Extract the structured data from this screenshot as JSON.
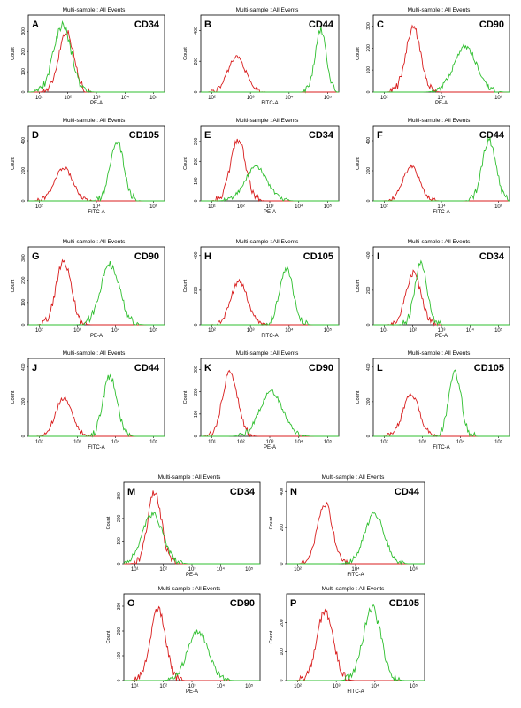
{
  "colors": {
    "negative": "#d81c1c",
    "positive": "#2fbf2f",
    "axis": "#000000",
    "background": "#ffffff"
  },
  "chart_data": [
    {
      "type": "line",
      "panel": "A",
      "marker": "CD34",
      "subtitle": "Multi-sample : All Events",
      "xlabel": "PE-A",
      "ylabel": "Count",
      "x_scale": "log",
      "xlim": [
        10,
        100000
      ],
      "x_ticks": [
        "10¹",
        "10²",
        "10³",
        "10⁴",
        "10⁵"
      ],
      "ylim": [
        0,
        380
      ],
      "y_ticks": [
        "0",
        "100",
        "200",
        "300"
      ],
      "series": [
        {
          "color": "red",
          "peak_x": 130,
          "peak_y": 300,
          "width": 0.22
        },
        {
          "color": "green",
          "peak_x": 100,
          "peak_y": 330,
          "width": 0.26
        }
      ]
    },
    {
      "type": "line",
      "panel": "B",
      "marker": "CD44",
      "subtitle": "Multi-sample : All Events",
      "xlabel": "FITC-A",
      "ylabel": "Count",
      "x_scale": "log",
      "xlim": [
        10,
        100000
      ],
      "x_ticks": [
        "10²",
        "10³",
        "10⁴",
        "10⁵"
      ],
      "ylim": [
        0,
        500
      ],
      "y_ticks": [
        "0",
        "200",
        "400"
      ],
      "series": [
        {
          "color": "red",
          "peak_x": 110,
          "peak_y": 230,
          "width": 0.25
        },
        {
          "color": "green",
          "peak_x": 30000,
          "peak_y": 410,
          "width": 0.16
        }
      ]
    },
    {
      "type": "line",
      "panel": "C",
      "marker": "CD90",
      "subtitle": "Multi-sample : All Events",
      "xlabel": "PE-A",
      "ylabel": "Count",
      "x_scale": "log",
      "xlim": [
        10,
        100000
      ],
      "x_ticks": [
        "10²",
        "10⁴",
        "10⁶"
      ],
      "ylim": [
        0,
        350
      ],
      "y_ticks": [
        "0",
        "100",
        "200",
        "300"
      ],
      "series": [
        {
          "color": "red",
          "peak_x": 150,
          "peak_y": 290,
          "width": 0.22
        },
        {
          "color": "green",
          "peak_x": 5000,
          "peak_y": 210,
          "width": 0.33
        }
      ]
    },
    {
      "type": "line",
      "panel": "D",
      "marker": "CD105",
      "subtitle": "Multi-sample : All Events",
      "xlabel": "FITC-A",
      "ylabel": "Count",
      "x_scale": "log",
      "xlim": [
        10,
        100000
      ],
      "x_ticks": [
        "10²",
        "10⁴",
        "10⁶"
      ],
      "ylim": [
        0,
        500
      ],
      "y_ticks": [
        "0",
        "200",
        "400"
      ],
      "series": [
        {
          "color": "red",
          "peak_x": 110,
          "peak_y": 220,
          "width": 0.26
        },
        {
          "color": "green",
          "peak_x": 4000,
          "peak_y": 400,
          "width": 0.2
        }
      ]
    },
    {
      "type": "line",
      "panel": "E",
      "marker": "CD34",
      "subtitle": "Multi-sample : All Events",
      "xlabel": "PE-A",
      "ylabel": "Count",
      "x_scale": "log",
      "xlim": [
        10,
        100000
      ],
      "x_ticks": [
        "10¹",
        "10²",
        "10³",
        "10⁴",
        "10⁵"
      ],
      "ylim": [
        0,
        380
      ],
      "y_ticks": [
        "0",
        "100",
        "200",
        "300"
      ],
      "series": [
        {
          "color": "red",
          "peak_x": 120,
          "peak_y": 310,
          "width": 0.22
        },
        {
          "color": "green",
          "peak_x": 400,
          "peak_y": 170,
          "width": 0.32
        }
      ]
    },
    {
      "type": "line",
      "panel": "F",
      "marker": "CD44",
      "subtitle": "Multi-sample : All Events",
      "xlabel": "FITC-A",
      "ylabel": "Count",
      "x_scale": "log",
      "xlim": [
        10,
        100000
      ],
      "x_ticks": [
        "10²",
        "10⁴",
        "10⁶"
      ],
      "ylim": [
        0,
        500
      ],
      "y_ticks": [
        "0",
        "200",
        "400"
      ],
      "series": [
        {
          "color": "red",
          "peak_x": 130,
          "peak_y": 230,
          "width": 0.24
        },
        {
          "color": "green",
          "peak_x": 25000,
          "peak_y": 400,
          "width": 0.2
        }
      ]
    },
    {
      "type": "line",
      "panel": "G",
      "marker": "CD90",
      "subtitle": "Multi-sample : All Events",
      "xlabel": "PE-A",
      "ylabel": "Count",
      "x_scale": "log",
      "xlim": [
        10,
        100000
      ],
      "x_ticks": [
        "10²",
        "10³",
        "10⁴",
        "10⁵"
      ],
      "ylim": [
        0,
        350
      ],
      "y_ticks": [
        "0",
        "100",
        "200",
        "300"
      ],
      "series": [
        {
          "color": "red",
          "peak_x": 110,
          "peak_y": 290,
          "width": 0.22
        },
        {
          "color": "green",
          "peak_x": 2500,
          "peak_y": 270,
          "width": 0.28
        }
      ]
    },
    {
      "type": "line",
      "panel": "H",
      "marker": "CD105",
      "subtitle": "Multi-sample : All Events",
      "xlabel": "FITC-A",
      "ylabel": "Count",
      "x_scale": "log",
      "xlim": [
        10,
        100000
      ],
      "x_ticks": [
        "10²",
        "10³",
        "10⁴",
        "10⁵"
      ],
      "ylim": [
        0,
        450
      ],
      "y_ticks": [
        "0",
        "200",
        "400"
      ],
      "series": [
        {
          "color": "red",
          "peak_x": 130,
          "peak_y": 250,
          "width": 0.24
        },
        {
          "color": "green",
          "peak_x": 3000,
          "peak_y": 330,
          "width": 0.2
        }
      ]
    },
    {
      "type": "line",
      "panel": "I",
      "marker": "CD34",
      "subtitle": "Multi-sample : All Events",
      "xlabel": "PE-A",
      "ylabel": "Count",
      "x_scale": "log",
      "xlim": [
        10,
        100000
      ],
      "x_ticks": [
        "10¹",
        "10²",
        "10³",
        "10⁴",
        "10⁵"
      ],
      "ylim": [
        0,
        450
      ],
      "y_ticks": [
        "0",
        "200",
        "400"
      ],
      "series": [
        {
          "color": "red",
          "peak_x": 150,
          "peak_y": 300,
          "width": 0.22
        },
        {
          "color": "green",
          "peak_x": 250,
          "peak_y": 350,
          "width": 0.18
        }
      ]
    },
    {
      "type": "line",
      "panel": "J",
      "marker": "CD44",
      "subtitle": "Multi-sample : All Events",
      "xlabel": "FITC-A",
      "ylabel": "Count",
      "x_scale": "log",
      "xlim": [
        10,
        100000
      ],
      "x_ticks": [
        "10²",
        "10³",
        "10⁴",
        "10⁵"
      ],
      "ylim": [
        0,
        450
      ],
      "y_ticks": [
        "0",
        "200",
        "400"
      ],
      "series": [
        {
          "color": "red",
          "peak_x": 110,
          "peak_y": 220,
          "width": 0.24
        },
        {
          "color": "green",
          "peak_x": 2500,
          "peak_y": 350,
          "width": 0.2
        }
      ]
    },
    {
      "type": "line",
      "panel": "K",
      "marker": "CD90",
      "subtitle": "Multi-sample : All Events",
      "xlabel": "PE-A",
      "ylabel": "Count",
      "x_scale": "log",
      "xlim": [
        10,
        100000
      ],
      "x_ticks": [
        "10¹",
        "10²",
        "10³",
        "10⁴",
        "10⁵"
      ],
      "ylim": [
        0,
        350
      ],
      "y_ticks": [
        "0",
        "100",
        "200",
        "300"
      ],
      "series": [
        {
          "color": "red",
          "peak_x": 70,
          "peak_y": 290,
          "width": 0.22
        },
        {
          "color": "green",
          "peak_x": 1100,
          "peak_y": 200,
          "width": 0.33
        }
      ]
    },
    {
      "type": "line",
      "panel": "L",
      "marker": "CD105",
      "subtitle": "Multi-sample : All Events",
      "xlabel": "FITC-A",
      "ylabel": "Count",
      "x_scale": "log",
      "xlim": [
        10,
        100000
      ],
      "x_ticks": [
        "10²",
        "10³",
        "10⁴",
        "10⁵"
      ],
      "ylim": [
        0,
        450
      ],
      "y_ticks": [
        "0",
        "200",
        "400"
      ],
      "series": [
        {
          "color": "red",
          "peak_x": 130,
          "peak_y": 240,
          "width": 0.24
        },
        {
          "color": "green",
          "peak_x": 2500,
          "peak_y": 370,
          "width": 0.18
        }
      ]
    },
    {
      "type": "line",
      "panel": "M",
      "marker": "CD34",
      "subtitle": "Multi-sample : All Events",
      "xlabel": "PE-A",
      "ylabel": "Count",
      "x_scale": "log",
      "xlim": [
        10,
        100000
      ],
      "x_ticks": [
        "10¹",
        "10²",
        "10³",
        "10⁴",
        "10⁵"
      ],
      "ylim": [
        0,
        360
      ],
      "y_ticks": [
        "0",
        "100",
        "200",
        "300"
      ],
      "series": [
        {
          "color": "red",
          "peak_x": 80,
          "peak_y": 320,
          "width": 0.2
        },
        {
          "color": "green",
          "peak_x": 70,
          "peak_y": 220,
          "width": 0.3
        }
      ]
    },
    {
      "type": "line",
      "panel": "N",
      "marker": "CD44",
      "subtitle": "Multi-sample : All Events",
      "xlabel": "FITC-A",
      "ylabel": "Count",
      "x_scale": "log",
      "xlim": [
        10,
        100000
      ],
      "x_ticks": [
        "10²",
        "10⁴",
        "10⁶"
      ],
      "ylim": [
        0,
        450
      ],
      "y_ticks": [
        "0",
        "200",
        "400"
      ],
      "series": [
        {
          "color": "red",
          "peak_x": 130,
          "peak_y": 330,
          "width": 0.22
        },
        {
          "color": "green",
          "peak_x": 3500,
          "peak_y": 280,
          "width": 0.28
        }
      ]
    },
    {
      "type": "line",
      "panel": "O",
      "marker": "CD90",
      "subtitle": "Multi-sample : All Events",
      "xlabel": "PE-A",
      "ylabel": "Count",
      "x_scale": "log",
      "xlim": [
        10,
        100000
      ],
      "x_ticks": [
        "10¹",
        "10²",
        "10³",
        "10⁴",
        "10⁵"
      ],
      "ylim": [
        0,
        350
      ],
      "y_ticks": [
        "0",
        "100",
        "200",
        "300"
      ],
      "series": [
        {
          "color": "red",
          "peak_x": 100,
          "peak_y": 290,
          "width": 0.22
        },
        {
          "color": "green",
          "peak_x": 1500,
          "peak_y": 200,
          "width": 0.3
        }
      ]
    },
    {
      "type": "line",
      "panel": "P",
      "marker": "CD105",
      "subtitle": "Multi-sample : All Events",
      "xlabel": "FITC-A",
      "ylabel": "Count",
      "x_scale": "log",
      "xlim": [
        10,
        100000
      ],
      "x_ticks": [
        "10²",
        "10³",
        "10⁴",
        "10⁵"
      ],
      "ylim": [
        0,
        300
      ],
      "y_ticks": [
        "0",
        "100",
        "200"
      ],
      "series": [
        {
          "color": "red",
          "peak_x": 130,
          "peak_y": 240,
          "width": 0.24
        },
        {
          "color": "green",
          "peak_x": 3000,
          "peak_y": 250,
          "width": 0.26
        }
      ]
    }
  ]
}
